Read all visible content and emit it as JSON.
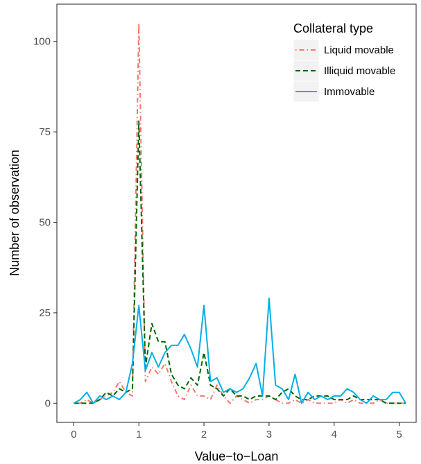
{
  "chart_data": {
    "type": "line",
    "xlabel": "Value−to−Loan",
    "ylabel": "Number of observation",
    "xlim": [
      -0.26,
      5.26
    ],
    "ylim": [
      -5.3,
      110.3
    ],
    "xticks": [
      0,
      1,
      2,
      3,
      4,
      5
    ],
    "xtick_labels": [
      "0",
      "1",
      "2",
      "3",
      "4",
      "5"
    ],
    "yticks": [
      0,
      25,
      50,
      75,
      100
    ],
    "ytick_labels": [
      "0",
      "25",
      "50",
      "75",
      "100"
    ],
    "grid": false,
    "legend": {
      "title": "Collateral type",
      "position": "top-right",
      "entries": [
        "Liquid movable",
        "Illiquid movable",
        "Immovable"
      ]
    },
    "x": [
      0.0,
      0.1,
      0.2,
      0.3,
      0.4,
      0.5,
      0.6,
      0.7,
      0.8,
      0.9,
      1.0,
      1.1,
      1.2,
      1.3,
      1.4,
      1.5,
      1.6,
      1.7,
      1.8,
      1.9,
      2.0,
      2.1,
      2.2,
      2.3,
      2.4,
      2.5,
      2.6,
      2.7,
      2.8,
      2.9,
      3.0,
      3.1,
      3.2,
      3.3,
      3.4,
      3.5,
      3.6,
      3.7,
      3.8,
      3.9,
      4.0,
      4.1,
      4.2,
      4.3,
      4.4,
      4.5,
      4.6,
      4.7,
      4.8,
      4.9,
      5.0,
      5.1
    ],
    "series": [
      {
        "name": "Liquid movable",
        "color": "#f8766d",
        "dash": "dotdash",
        "values": [
          0,
          0,
          1,
          0,
          1,
          2,
          3,
          6,
          3,
          2,
          105,
          6,
          10,
          8,
          11,
          6,
          2,
          1,
          5,
          2,
          2,
          1,
          5,
          2,
          0,
          2,
          1,
          0,
          1,
          1,
          2,
          1,
          0,
          0,
          1,
          0,
          1,
          0,
          0,
          0,
          0,
          1,
          0,
          1,
          0,
          0,
          0,
          1,
          0,
          0,
          0,
          0
        ]
      },
      {
        "name": "Illiquid movable",
        "color": "#006400",
        "dash": "dashed",
        "values": [
          0,
          0,
          0,
          0,
          1,
          3,
          2,
          4,
          3,
          4,
          78,
          10,
          22,
          17,
          17,
          8,
          5,
          4,
          7,
          5,
          14,
          5,
          4,
          2,
          4,
          2,
          2,
          1,
          2,
          2,
          2,
          1,
          3,
          4,
          2,
          1,
          1,
          2,
          2,
          2,
          1,
          1,
          1,
          2,
          1,
          1,
          1,
          1,
          0,
          0,
          0,
          0
        ]
      },
      {
        "name": "Immovable",
        "color": "#00b0e8",
        "dash": "solid",
        "values": [
          0,
          1,
          3,
          0,
          2,
          1,
          2,
          1,
          3,
          11,
          27,
          9,
          14,
          10,
          14,
          16,
          16,
          19,
          15,
          10,
          27,
          6,
          7,
          3,
          4,
          3,
          4,
          7,
          11,
          2,
          29,
          5,
          4,
          1,
          8,
          0,
          3,
          1,
          2,
          1,
          2,
          2,
          4,
          3,
          1,
          0,
          2,
          1,
          1,
          3,
          3,
          0
        ]
      }
    ]
  }
}
